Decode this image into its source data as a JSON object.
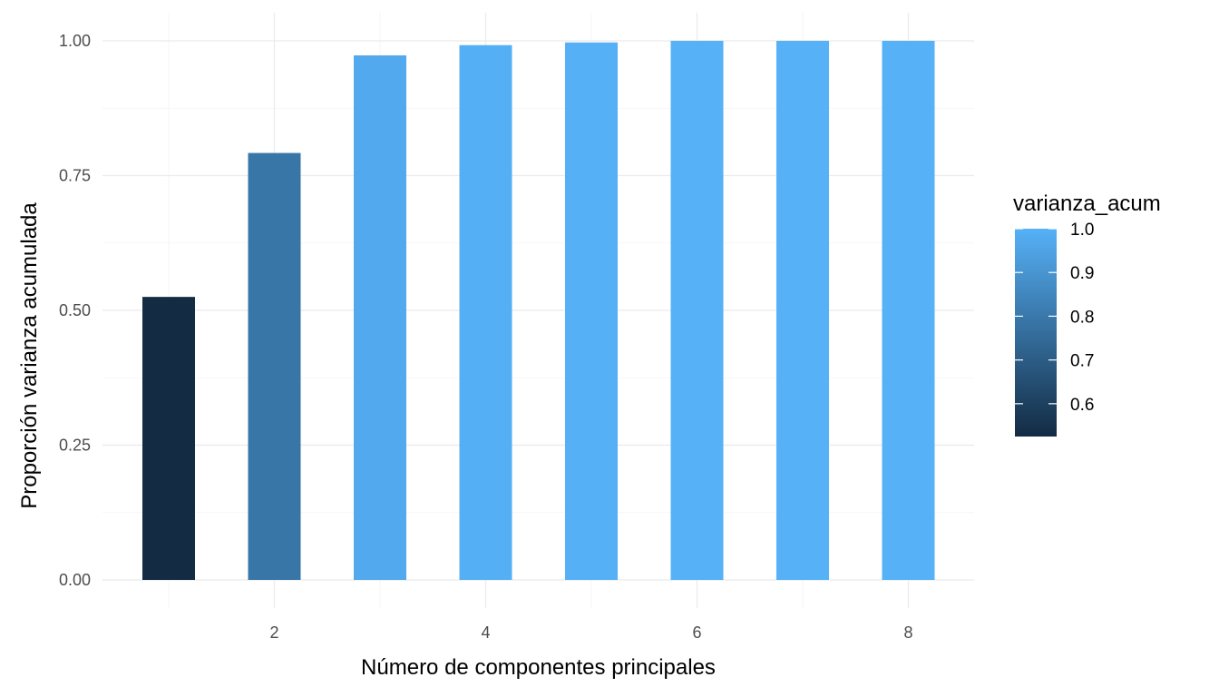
{
  "chart_data": {
    "type": "bar",
    "x": [
      1,
      2,
      3,
      4,
      5,
      6,
      7,
      8
    ],
    "values": [
      0.525,
      0.792,
      0.973,
      0.992,
      0.997,
      1.0,
      1.0,
      1.0
    ],
    "xlabel": "Número de componentes principales",
    "ylabel": "Proporción varianza acumulada",
    "x_ticks": [
      2,
      4,
      6,
      8
    ],
    "y_ticks": [
      "0.00",
      "0.25",
      "0.50",
      "0.75",
      "1.00"
    ],
    "y_tick_values": [
      0,
      0.25,
      0.5,
      0.75,
      1.0
    ],
    "xlim": [
      0.3,
      8.6
    ],
    "ylim": [
      0,
      1.0
    ],
    "grid": true,
    "legend": {
      "title": "varianza_acum",
      "placement": "right",
      "type": "colorbar",
      "labels": [
        "1.0",
        "0.9",
        "0.8",
        "0.7",
        "0.6"
      ],
      "label_values": [
        1.0,
        0.9,
        0.8,
        0.7,
        0.6
      ],
      "range": [
        0.525,
        1.0
      ],
      "color_low": "#132B43",
      "color_high": "#56B1F7"
    }
  }
}
